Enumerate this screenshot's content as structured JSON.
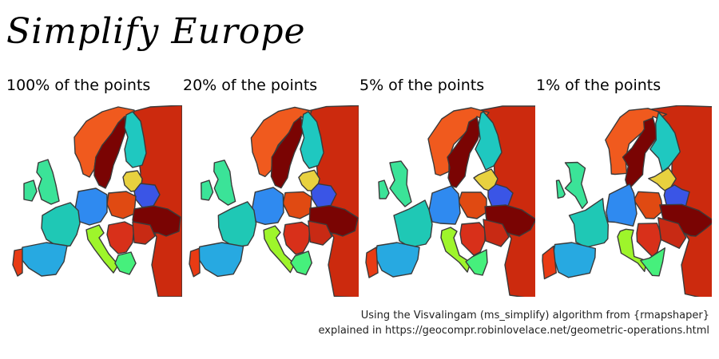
{
  "title": "Simplify Europe",
  "panels": [
    {
      "label": "100% of the points",
      "level": "p100"
    },
    {
      "label": "20% of the points",
      "level": "p20"
    },
    {
      "label": "5% of the points",
      "level": "p5"
    },
    {
      "label": "1% of the points",
      "level": "p1"
    }
  ],
  "caption": {
    "line1": "Using the Visvalingam (ms_simplify) algorithm from {rmapshaper}",
    "line2": "explained in https://geocompr.robinlovelace.net/geometric-operations.html"
  },
  "map": {
    "border_color": "#3a3a3a",
    "country_colors": {
      "russia": "#cc2a0e",
      "norway": "#f05a1e",
      "sweden": "#7a0403",
      "finland": "#1fc8c0",
      "baltics": "#e8d13f",
      "belarus": "#3a55e6",
      "ukraine": "#7a0403",
      "poland": "#e04a12",
      "germany": "#2f8af0",
      "france": "#1fc8b5",
      "spain": "#27a9e1",
      "portugal": "#e83b14",
      "italy": "#9ef52b",
      "uk": "#3be398",
      "ireland": "#3be398",
      "balkans": "#d8301a",
      "greece": "#46f07c",
      "romania": "#c82a14"
    }
  }
}
